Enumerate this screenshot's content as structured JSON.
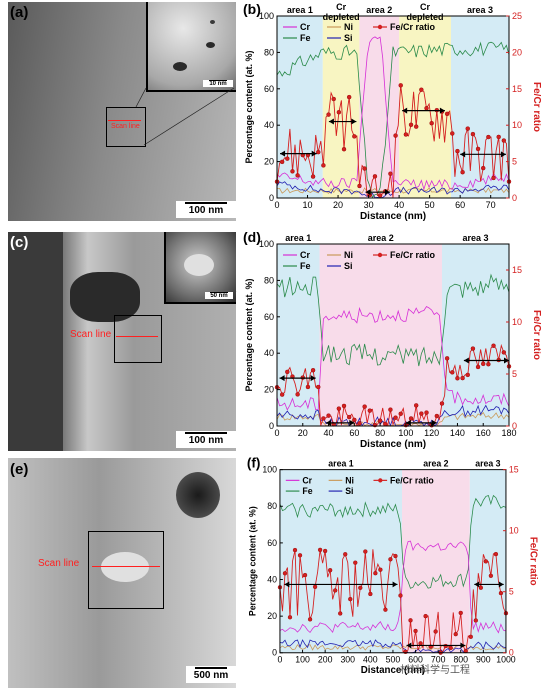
{
  "panels": {
    "a": {
      "letter": "(a)",
      "scale": "100 nm",
      "inset_scale": "10 nm",
      "scan_label": "Scan line"
    },
    "c": {
      "letter": "(c)",
      "scale": "100 nm",
      "inset_scale": "50 nm",
      "scan_label": "Scan line"
    },
    "e": {
      "letter": "(e)",
      "scale": "500 nm",
      "scan_label": "Scan line"
    }
  },
  "colors": {
    "Cr": "#d62fd6",
    "Ni": "#c99a5a",
    "Fe": "#2a8a4a",
    "Si": "#2020b0",
    "ratio": "#d42020",
    "area_blue": "#d4ebf5",
    "area_yellow": "#f8f5c2",
    "area_pink": "#f8dcea"
  },
  "chart_data": [
    {
      "letter": "(b)",
      "type": "line",
      "xlabel": "Distance (nm)",
      "ylabel": "Percentage content (at. %)",
      "y2label": "Fe/Cr ratio",
      "xlim": [
        0,
        76
      ],
      "xticks": [
        0,
        10,
        20,
        30,
        40,
        50,
        60,
        70
      ],
      "ylim": [
        0,
        100
      ],
      "yticks": [
        0,
        20,
        40,
        60,
        80,
        100
      ],
      "y2lim": [
        0,
        25
      ],
      "y2ticks": [
        0,
        5,
        10,
        15,
        20,
        25
      ],
      "areas": [
        {
          "label": "area 1",
          "x0": 0,
          "x1": 15,
          "color": "blue"
        },
        {
          "label": "Cr depleted",
          "x0": 15,
          "x1": 27,
          "color": "yellow"
        },
        {
          "label": "area 2",
          "x0": 27,
          "x1": 40,
          "color": "pink"
        },
        {
          "label": "Cr depleted",
          "x0": 40,
          "x1": 57,
          "color": "yellow"
        },
        {
          "label": "area 3",
          "x0": 57,
          "x1": 76,
          "color": "blue"
        }
      ],
      "legend": [
        "Cr",
        "Ni",
        "Fe/Cr ratio",
        "Fe",
        "Si"
      ],
      "segments": {
        "Fe": [
          [
            0,
            68
          ],
          [
            15,
            80
          ],
          [
            26,
            80
          ],
          [
            30,
            3
          ],
          [
            34,
            3
          ],
          [
            38,
            80
          ],
          [
            57,
            82
          ],
          [
            76,
            82
          ]
        ],
        "Cr": [
          [
            0,
            12
          ],
          [
            15,
            8
          ],
          [
            26,
            8
          ],
          [
            30,
            88
          ],
          [
            34,
            88
          ],
          [
            38,
            8
          ],
          [
            57,
            7
          ],
          [
            76,
            12
          ]
        ],
        "Ni": [
          [
            0,
            4
          ],
          [
            76,
            4
          ]
        ],
        "Si": [
          [
            0,
            8
          ],
          [
            15,
            4
          ],
          [
            26,
            4
          ],
          [
            30,
            1
          ],
          [
            34,
            1
          ],
          [
            38,
            4
          ],
          [
            57,
            4
          ],
          [
            76,
            6
          ]
        ],
        "ratio": [
          [
            0,
            6.2
          ],
          [
            15,
            6.2
          ],
          [
            16,
            10.5
          ],
          [
            26,
            10.5
          ],
          [
            27,
            0.5
          ],
          [
            38,
            0.5
          ],
          [
            39,
            12
          ],
          [
            57,
            11
          ],
          [
            58,
            6
          ],
          [
            76,
            6
          ]
        ]
      },
      "noise": {
        "Fe": 4,
        "Cr": 3,
        "Ni": 1.5,
        "Si": 2,
        "ratio": 4
      },
      "arrows": [
        {
          "x0": 1,
          "x1": 13,
          "y": 6.1
        },
        {
          "x0": 17,
          "x1": 26,
          "y": 10.5
        },
        {
          "x0": 29,
          "x1": 37,
          "y": 0.8
        },
        {
          "x0": 41,
          "x1": 55,
          "y": 12
        },
        {
          "x0": 60,
          "x1": 75,
          "y": 6
        }
      ]
    },
    {
      "letter": "(d)",
      "type": "line",
      "xlabel": "Distance (nm)",
      "ylabel": "Percentage content (at. %)",
      "y2label": "Fe/Cr ratio",
      "xlim": [
        0,
        180
      ],
      "xticks": [
        0,
        20,
        40,
        60,
        80,
        100,
        120,
        140,
        160,
        180
      ],
      "ylim": [
        0,
        100
      ],
      "yticks": [
        0,
        20,
        40,
        60,
        80,
        100
      ],
      "y2lim": [
        0,
        17.5
      ],
      "y2ticks": [
        0,
        5,
        10,
        15
      ],
      "areas": [
        {
          "label": "area 1",
          "x0": 0,
          "x1": 33,
          "color": "blue"
        },
        {
          "label": "area 2",
          "x0": 33,
          "x1": 128,
          "color": "pink"
        },
        {
          "label": "area 3",
          "x0": 128,
          "x1": 180,
          "color": "blue"
        }
      ],
      "legend": [
        "Cr",
        "Ni",
        "Fe/Cr ratio",
        "Fe",
        "Si"
      ],
      "segments": {
        "Fe": [
          [
            0,
            76
          ],
          [
            32,
            76
          ],
          [
            36,
            40
          ],
          [
            126,
            38
          ],
          [
            132,
            76
          ],
          [
            180,
            78
          ]
        ],
        "Cr": [
          [
            0,
            12
          ],
          [
            32,
            12
          ],
          [
            36,
            60
          ],
          [
            126,
            62
          ],
          [
            132,
            16
          ],
          [
            180,
            14
          ]
        ],
        "Ni": [
          [
            0,
            5
          ],
          [
            32,
            5
          ],
          [
            36,
            1
          ],
          [
            126,
            1
          ],
          [
            132,
            5
          ],
          [
            180,
            6
          ]
        ],
        "Si": [
          [
            0,
            6
          ],
          [
            32,
            6
          ],
          [
            36,
            2
          ],
          [
            126,
            2
          ],
          [
            132,
            8
          ],
          [
            180,
            9
          ]
        ],
        "ratio": [
          [
            0,
            4.5
          ],
          [
            32,
            4.5
          ],
          [
            34,
            0.5
          ],
          [
            126,
            0.5
          ],
          [
            132,
            5.5
          ],
          [
            180,
            7
          ]
        ]
      },
      "noise": {
        "Fe": 6,
        "Cr": 4,
        "Ni": 2,
        "Si": 3,
        "ratio": 1.5
      },
      "arrows": [
        {
          "x0": 2,
          "x1": 30,
          "y": 4.6
        },
        {
          "x0": 38,
          "x1": 60,
          "y": 0.3
        },
        {
          "x0": 100,
          "x1": 124,
          "y": 0.3
        },
        {
          "x0": 145,
          "x1": 180,
          "y": 6.3
        }
      ]
    },
    {
      "letter": "(f)",
      "type": "line",
      "xlabel": "Distance (nm)",
      "ylabel": "Percentage content (at. %)",
      "y2label": "Fe/Cr ratio",
      "xlim": [
        0,
        1000
      ],
      "xticks": [
        0,
        100,
        200,
        300,
        400,
        500,
        600,
        700,
        800,
        900,
        1000
      ],
      "ylim": [
        0,
        100
      ],
      "yticks": [
        0,
        20,
        40,
        60,
        80,
        100
      ],
      "y2lim": [
        0,
        15
      ],
      "y2ticks": [
        0,
        5,
        10,
        15
      ],
      "areas": [
        {
          "label": "area 1",
          "x0": 0,
          "x1": 540,
          "color": "blue"
        },
        {
          "label": "area 2",
          "x0": 540,
          "x1": 840,
          "color": "pink"
        },
        {
          "label": "area 3",
          "x0": 840,
          "x1": 1000,
          "color": "blue"
        }
      ],
      "legend": [
        "Cr",
        "Ni",
        "Fe/Cr ratio",
        "Fe",
        "Si"
      ],
      "segments": {
        "Fe": [
          [
            0,
            78
          ],
          [
            530,
            78
          ],
          [
            550,
            38
          ],
          [
            830,
            40
          ],
          [
            850,
            82
          ],
          [
            1000,
            82
          ]
        ],
        "Cr": [
          [
            0,
            14
          ],
          [
            530,
            14
          ],
          [
            550,
            58
          ],
          [
            830,
            58
          ],
          [
            850,
            14
          ],
          [
            1000,
            14
          ]
        ],
        "Ni": [
          [
            0,
            3
          ],
          [
            1000,
            3
          ]
        ],
        "Si": [
          [
            0,
            5
          ],
          [
            530,
            5
          ],
          [
            550,
            1
          ],
          [
            830,
            1
          ],
          [
            850,
            4
          ],
          [
            1000,
            4
          ]
        ],
        "ratio": [
          [
            0,
            5.5
          ],
          [
            530,
            5.5
          ],
          [
            550,
            0.5
          ],
          [
            830,
            0.5
          ],
          [
            850,
            5.5
          ],
          [
            1000,
            5.5
          ]
        ]
      },
      "noise": {
        "Fe": 4,
        "Cr": 3,
        "Ni": 1.5,
        "Si": 2,
        "ratio": 3
      },
      "arrows": [
        {
          "x0": 20,
          "x1": 520,
          "y": 5.6
        },
        {
          "x0": 560,
          "x1": 820,
          "y": 0.6
        },
        {
          "x0": 860,
          "x1": 990,
          "y": 5.6
        }
      ]
    }
  ],
  "watermark": "材料科学与工程"
}
